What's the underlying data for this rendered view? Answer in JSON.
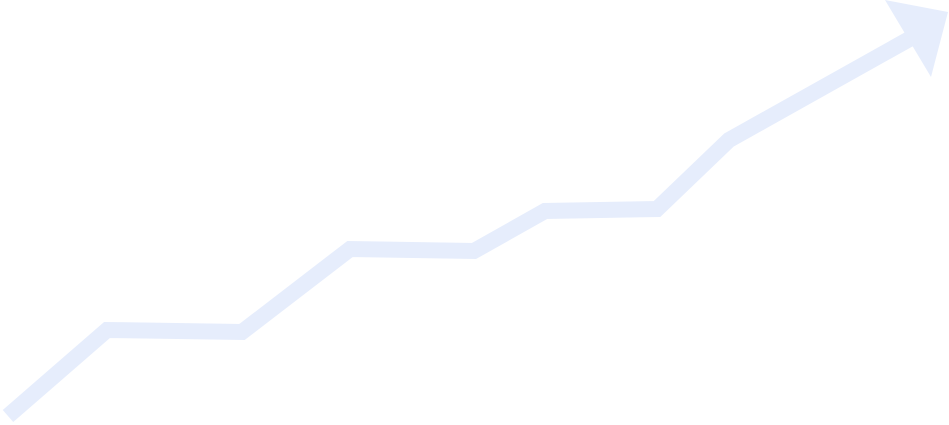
{
  "graphic": {
    "kind": "rising-trend-arrow",
    "color": "#e6edfc",
    "background": "#ffffff"
  }
}
